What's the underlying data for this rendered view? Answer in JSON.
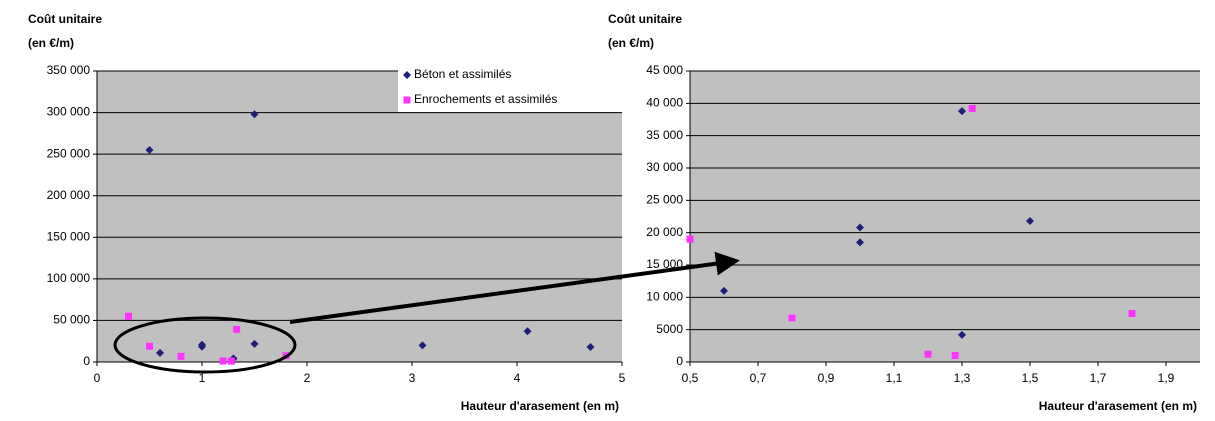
{
  "chart_data": [
    {
      "type": "scatter",
      "y_label": [
        "Coût unitaire",
        "(en €/m)"
      ],
      "x_label": "Hauteur d'arasement (en m)",
      "xlim": [
        0,
        5
      ],
      "xticks": [
        0,
        1,
        2,
        3,
        4,
        5
      ],
      "ylim": [
        0,
        350000
      ],
      "yticks": [
        0,
        {
          "value": 50000,
          "label": "50 000"
        },
        {
          "value": 100000,
          "label": "100 000"
        },
        {
          "value": 150000,
          "label": "150 000"
        },
        {
          "value": 200000,
          "label": "200 000"
        },
        {
          "value": 250000,
          "label": "250 000"
        },
        {
          "value": 300000,
          "label": "300 000"
        },
        {
          "value": 350000,
          "label": "350 000"
        }
      ],
      "grid": true,
      "legend": "upper right",
      "series": [
        {
          "name": "Béton et assimilés",
          "color": "#1f1f7a",
          "marker": "diamond",
          "x": [
            0.5,
            1.5,
            0.6,
            1,
            1,
            1.3,
            1.5,
            3.1,
            4.1,
            4.7
          ],
          "values": [
            255000,
            298000,
            11000,
            18500,
            20800,
            4200,
            21800,
            20000,
            37000,
            18000
          ]
        },
        {
          "name": "Enrochements et assimilés",
          "color": "#ff33ff",
          "marker": "square",
          "x": [
            0.3,
            0.5,
            0.8,
            1.2,
            1.28,
            1.33,
            1.8
          ],
          "values": [
            55000,
            19000,
            6800,
            1200,
            1000,
            39200,
            7500
          ]
        }
      ]
    },
    {
      "type": "scatter",
      "y_label": [
        "Coût unitaire",
        "(en €/m)"
      ],
      "x_label": "Hauteur d'arasement (en m)",
      "xlim": [
        0.5,
        2
      ],
      "xticks": [
        {
          "value": 0.5,
          "label": "0,5"
        },
        {
          "value": 0.7,
          "label": "0,7"
        },
        {
          "value": 0.9,
          "label": "0,9"
        },
        {
          "value": 1.1,
          "label": "1,1"
        },
        {
          "value": 1.3,
          "label": "1,3"
        },
        {
          "value": 1.5,
          "label": "1,5"
        },
        {
          "value": 1.7,
          "label": "1,7"
        },
        {
          "value": 1.9,
          "label": "1,9"
        }
      ],
      "ylim": [
        0,
        45000
      ],
      "yticks": [
        0,
        5000,
        {
          "value": 10000,
          "label": "10 000"
        },
        {
          "value": 15000,
          "label": "15 000"
        },
        {
          "value": 20000,
          "label": "20 000"
        },
        {
          "value": 25000,
          "label": "25 000"
        },
        {
          "value": 30000,
          "label": "30 000"
        },
        {
          "value": 35000,
          "label": "35 000"
        },
        {
          "value": 40000,
          "label": "40 000"
        },
        {
          "value": 45000,
          "label": "45 000"
        }
      ],
      "grid": true,
      "legend": false,
      "series": [
        {
          "color": "#1f1f7a",
          "marker": "diamond",
          "x": [
            0.6,
            1,
            1,
            1.3,
            1.3,
            1.5
          ],
          "values": [
            11000,
            18500,
            20800,
            38800,
            4200,
            21800
          ]
        },
        {
          "color": "#ff33ff",
          "marker": "square",
          "x": [
            0.5,
            0.8,
            1.2,
            1.28,
            1.33,
            1.8
          ],
          "values": [
            19000,
            6800,
            1200,
            1000,
            39200,
            7500
          ]
        }
      ]
    }
  ]
}
